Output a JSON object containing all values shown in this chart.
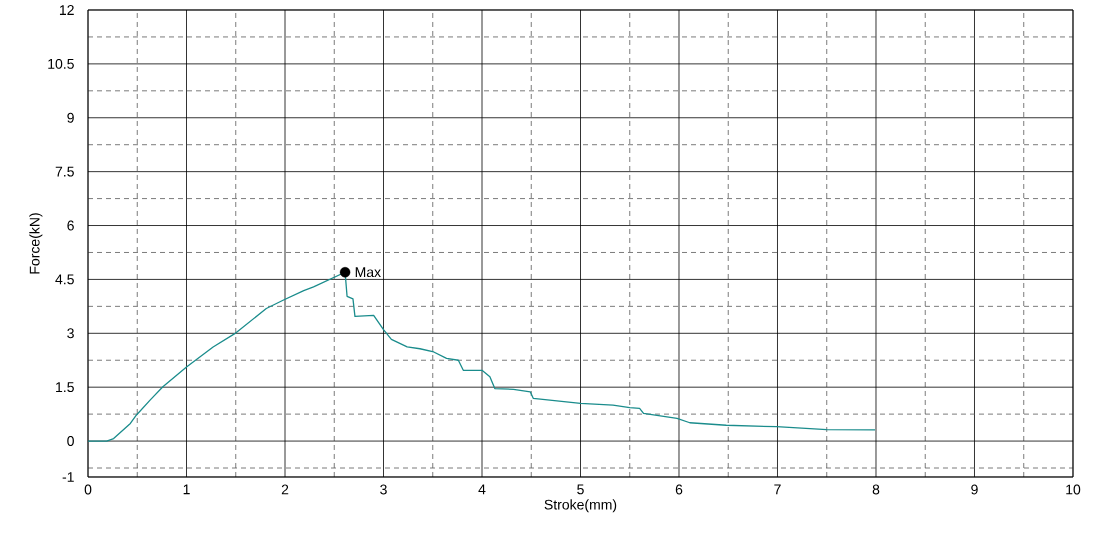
{
  "chart_data": {
    "type": "line",
    "xlabel": "Stroke(mm)",
    "ylabel": "Force(kN)",
    "xlim": [
      0,
      10
    ],
    "ylim": [
      -1,
      12
    ],
    "xticks": [
      0,
      1,
      2,
      3,
      4,
      5,
      6,
      7,
      8,
      9,
      10
    ],
    "yticks": [
      -1,
      0,
      1.5,
      3,
      4.5,
      6,
      7.5,
      9,
      10.5,
      12
    ],
    "grid": true,
    "series": [
      {
        "color": "#1a8c8c",
        "x": [
          0,
          0.19,
          0.26,
          0.43,
          0.49,
          0.63,
          0.76,
          1.0,
          1.27,
          1.49,
          1.81,
          1.98,
          2.19,
          2.29,
          2.61,
          2.63,
          2.69,
          2.71,
          2.9,
          3.0,
          3.08,
          3.24,
          3.37,
          3.51,
          3.64,
          3.76,
          3.81,
          4.0,
          4.08,
          4.13,
          4.32,
          4.49,
          4.52,
          5.0,
          5.33,
          5.5,
          5.6,
          5.64,
          5.98,
          6.11,
          6.48,
          6.99,
          7.5,
          7.99
        ],
        "values": [
          0,
          0,
          0.07,
          0.49,
          0.72,
          1.14,
          1.51,
          2.06,
          2.62,
          2.99,
          3.69,
          3.92,
          4.19,
          4.29,
          4.7,
          4.03,
          3.96,
          3.47,
          3.5,
          3.1,
          2.83,
          2.62,
          2.57,
          2.48,
          2.3,
          2.25,
          1.97,
          1.97,
          1.79,
          1.46,
          1.44,
          1.37,
          1.19,
          1.05,
          1.0,
          0.93,
          0.91,
          0.77,
          0.63,
          0.51,
          0.44,
          0.4,
          0.32,
          0.31
        ]
      },
      {
        "type": "scatter",
        "color": "#000000",
        "marker": "circle",
        "x": [
          2.61
        ],
        "values": [
          4.7
        ]
      }
    ],
    "annotations": [
      {
        "text": "Max",
        "x": 2.61,
        "y": 4.7
      }
    ]
  }
}
